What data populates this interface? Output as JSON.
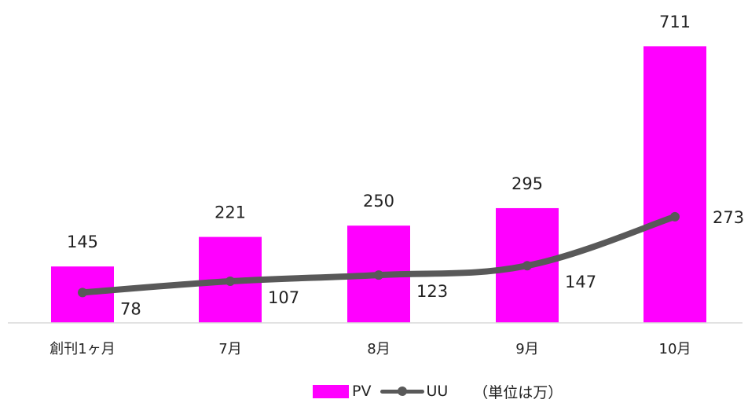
{
  "legend": {
    "pv_label": "PV",
    "uu_label": "UU",
    "unit_note": "（単位は万）"
  },
  "colors": {
    "pv": "#ff00ff",
    "uu": "#595959",
    "baseline": "#d9d9d9"
  },
  "chart_data": {
    "type": "bar",
    "categories": [
      "創刊1ヶ月",
      "7月",
      "8月",
      "9月",
      "10月"
    ],
    "series": [
      {
        "name": "PV",
        "type": "bar",
        "values": [
          145,
          221,
          250,
          295,
          711
        ]
      },
      {
        "name": "UU",
        "type": "line",
        "values": [
          78,
          107,
          123,
          147,
          273
        ]
      }
    ],
    "ylim": [
      0,
      711
    ],
    "grid": false,
    "legend_position": "bottom"
  }
}
